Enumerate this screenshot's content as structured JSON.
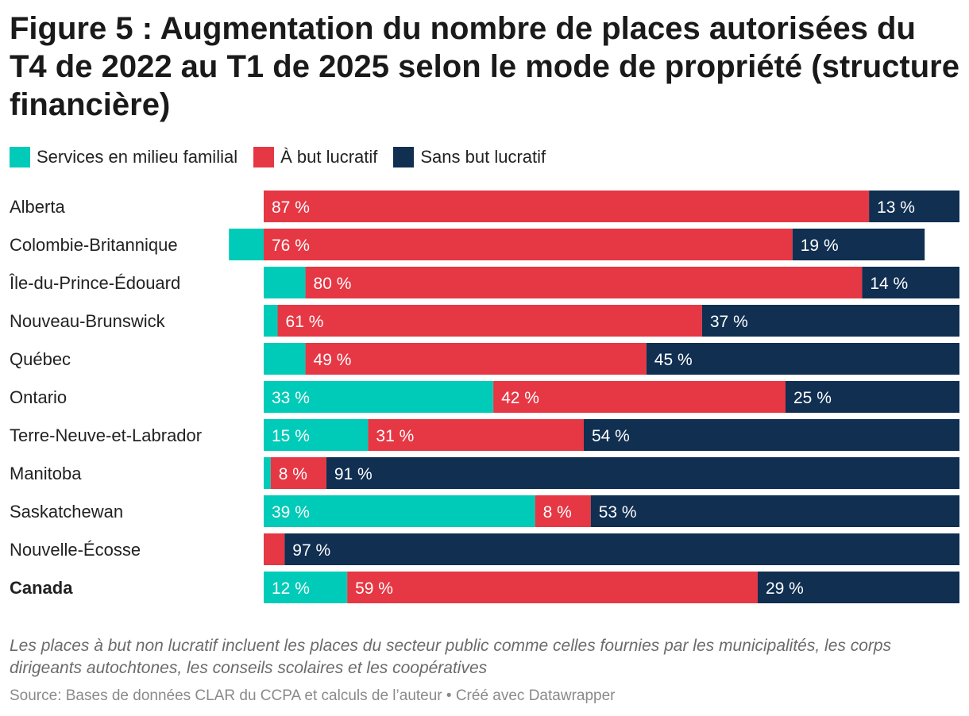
{
  "title": "Figure 5 : Augmentation du nombre de places autorisées du T4 de 2022 au T1 de 2025 selon le mode de propriété (structure financière)",
  "note": "Les places à but non lucratif incluent les places du secteur public comme celles fournies par les municipalités, les corps dirigeants autochtones, les conseils scolaires et les coopératives",
  "source": "Source: Bases de données CLAR du CCPA et calculs de l’auteur • Créé avec Datawrapper",
  "chart_data": {
    "type": "bar",
    "orientation": "horizontal",
    "stacked": true,
    "unit": "%",
    "categories": [
      "Alberta",
      "Colombie-Britannique",
      "Île-du-Prince-Édouard",
      "Nouveau-Brunswick",
      "Québec",
      "Ontario",
      "Terre-Neuve-et-Labrador",
      "Manitoba",
      "Saskatchewan",
      "Nouvelle-Écosse",
      "Canada"
    ],
    "bold_categories": [
      "Canada"
    ],
    "series": [
      {
        "name": "Services en milieu familial",
        "color": "#00cbb8",
        "values": [
          0,
          -5,
          6,
          2,
          6,
          33,
          15,
          1,
          39,
          0,
          12
        ],
        "labels": [
          "",
          "",
          "",
          "",
          "",
          "33 %",
          "15 %",
          "",
          "39 %",
          "",
          "12 %"
        ]
      },
      {
        "name": "À but lucratif",
        "color": "#e63744",
        "values": [
          87,
          76,
          80,
          61,
          49,
          42,
          31,
          8,
          8,
          3,
          59
        ],
        "labels": [
          "87 %",
          "76 %",
          "80 %",
          "61 %",
          "49 %",
          "42 %",
          "31 %",
          "8 %",
          "8 %",
          "",
          "59 %"
        ]
      },
      {
        "name": "Sans but lucratif",
        "color": "#102f51",
        "values": [
          13,
          19,
          14,
          37,
          45,
          25,
          54,
          91,
          53,
          97,
          29
        ],
        "labels": [
          "13 %",
          "19 %",
          "14 %",
          "37 %",
          "45 %",
          "25 %",
          "54 %",
          "91 %",
          "53 %",
          "97 %",
          "29 %"
        ]
      }
    ],
    "legend_position": "top-left",
    "grid": false
  }
}
